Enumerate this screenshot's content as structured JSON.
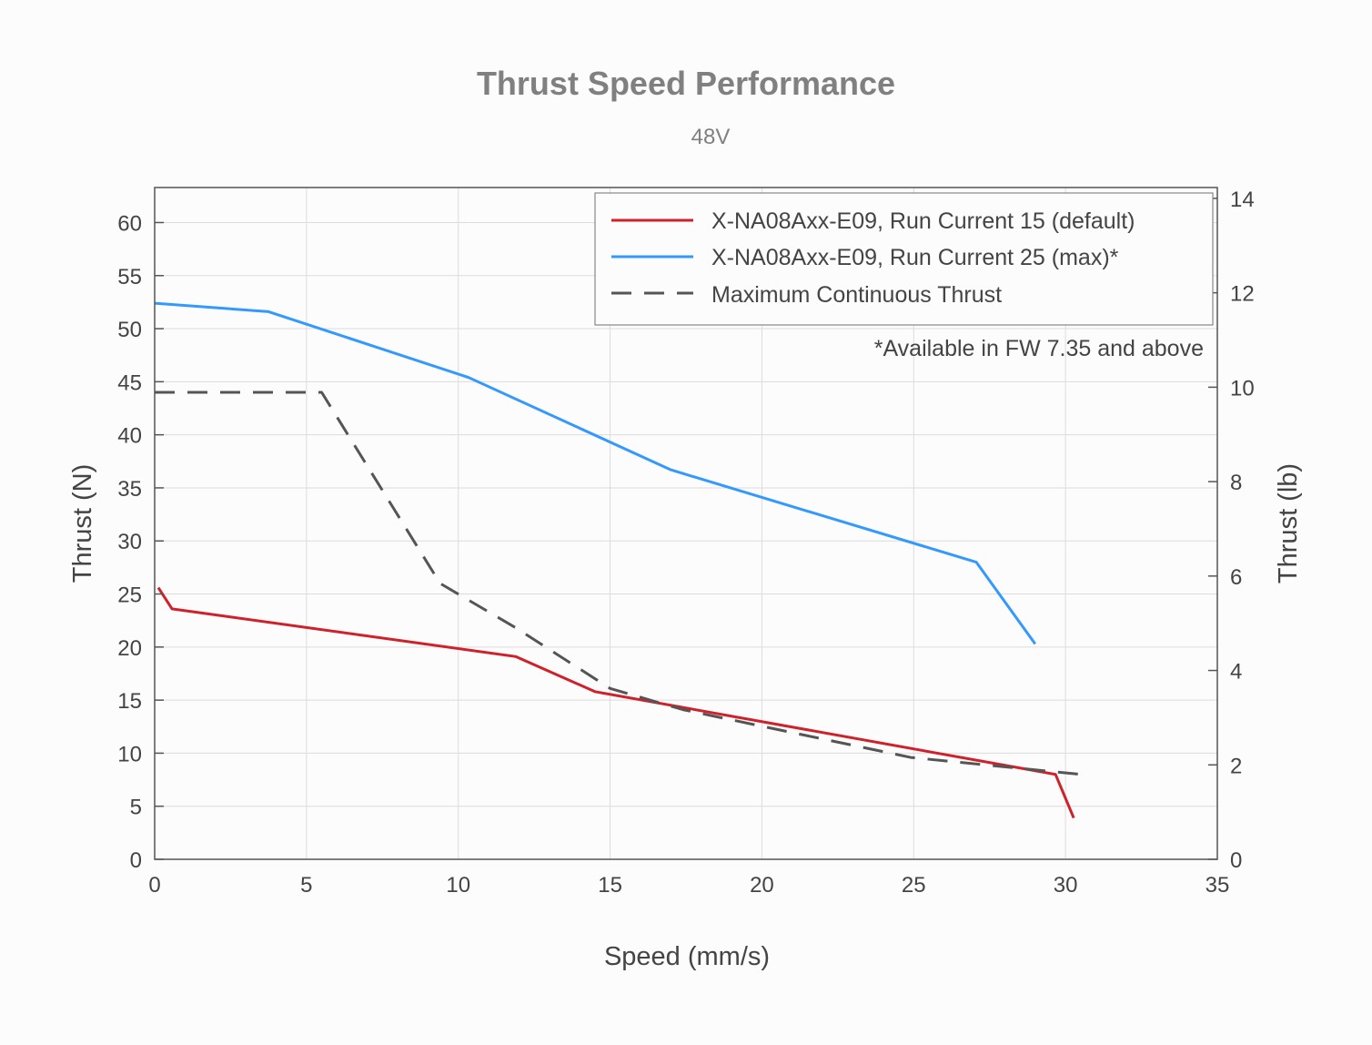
{
  "chart_data": {
    "type": "line",
    "title": "Thrust Speed Performance",
    "subtitle": "48V",
    "xlabel": "Speed (mm/s)",
    "ylabel": "Thrust (N)",
    "y2label": "Thrust (lb)",
    "xlim": [
      0,
      35
    ],
    "ylim": [
      0,
      63.3
    ],
    "y2lim": [
      0,
      14.23
    ],
    "xticks": [
      "0",
      "5",
      "10",
      "15",
      "20",
      "25",
      "30",
      "35"
    ],
    "yticks": [
      "0",
      "5",
      "10",
      "15",
      "20",
      "25",
      "30",
      "35",
      "40",
      "45",
      "50",
      "55",
      "60"
    ],
    "y2ticks": [
      "0",
      "2",
      "4",
      "6",
      "8",
      "10",
      "12",
      "14"
    ],
    "grid": true,
    "legend_position": "top-right",
    "annotation": "*Available in FW 7.35 and above",
    "series": [
      {
        "name": "X-NA08Axx-E09, Run Current 15 (default)",
        "color": "#d0202a",
        "style": "solid",
        "x": [
          0.12,
          0.57,
          11.9,
          14.5,
          29.67,
          30.27
        ],
        "y": [
          25.6,
          23.6,
          19.1,
          15.8,
          8.0,
          3.9
        ]
      },
      {
        "name": "X-NA08Axx-E09, Run Current 25 (max)*",
        "color": "#3399ff",
        "style": "solid",
        "x": [
          0,
          3.75,
          10.34,
          17.0,
          27.06,
          29.0
        ],
        "y": [
          52.4,
          51.6,
          45.4,
          36.7,
          28.0,
          20.3
        ]
      },
      {
        "name": "Maximum Continuous Thrust",
        "color": "#555555",
        "style": "dashed",
        "x": [
          0,
          5.5,
          9.4,
          11.9,
          15.0,
          17.4,
          24.9,
          30.5
        ],
        "y": [
          44.0,
          44.0,
          26.0,
          21.8,
          16.1,
          14.1,
          9.6,
          8.0
        ]
      }
    ]
  }
}
